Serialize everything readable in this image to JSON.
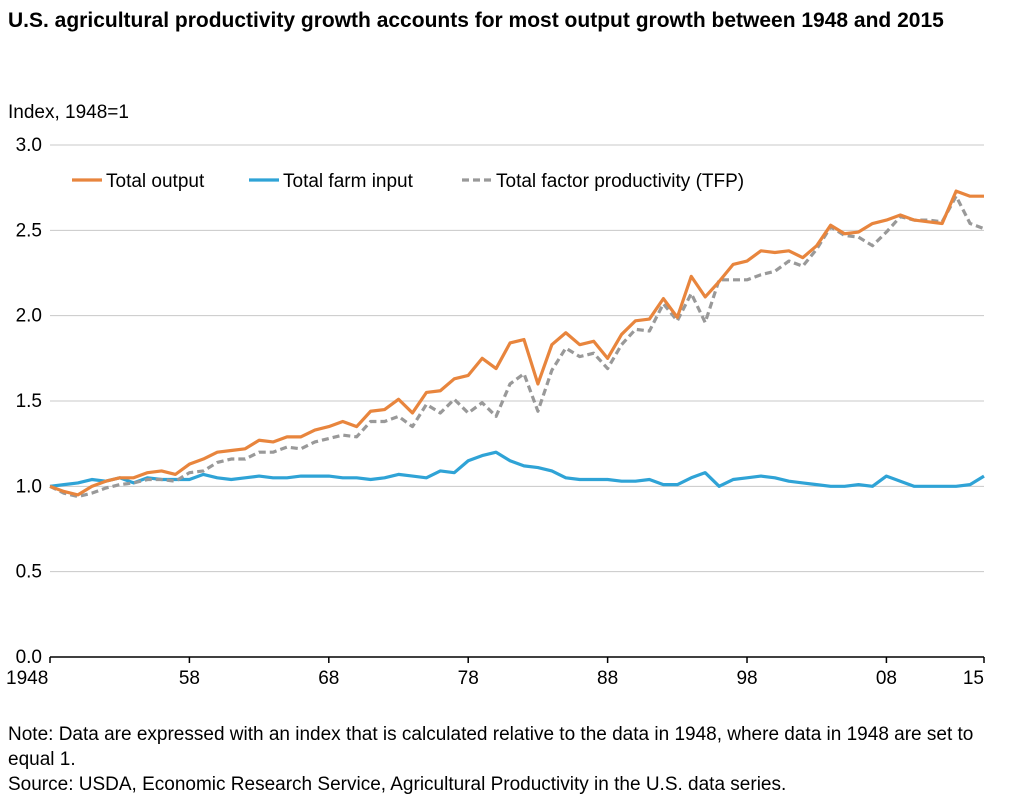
{
  "title": "U.S. agricultural productivity growth accounts for most output growth between 1948 and 2015",
  "note": "Note: Data are expressed with an index that is calculated relative to the data in 1948, where data in 1948 are set to equal 1.",
  "source": "Source: USDA, Economic Research Service, Agricultural Productivity in the U.S. data series.",
  "chart_data": {
    "type": "line",
    "ylabel": "Index, 1948=1",
    "xlabel": "",
    "ylim": [
      0,
      3
    ],
    "xlim": [
      1948,
      2015
    ],
    "yticks": [
      0,
      0.5,
      1,
      1.5,
      2,
      2.5,
      3
    ],
    "ytick_labels": [
      "0.0",
      "0.5",
      "1.0",
      "1.5",
      "2.0",
      "2.5",
      "3.0"
    ],
    "xticks": [
      1948,
      1958,
      1968,
      1978,
      1988,
      1998,
      2008,
      2015
    ],
    "xtick_labels": [
      "1948",
      "58",
      "68",
      "78",
      "88",
      "98",
      "08",
      "15"
    ],
    "grid": "horizontal",
    "legend_position": "top",
    "x": [
      1948,
      1949,
      1950,
      1951,
      1952,
      1953,
      1954,
      1955,
      1956,
      1957,
      1958,
      1959,
      1960,
      1961,
      1962,
      1963,
      1964,
      1965,
      1966,
      1967,
      1968,
      1969,
      1970,
      1971,
      1972,
      1973,
      1974,
      1975,
      1976,
      1977,
      1978,
      1979,
      1980,
      1981,
      1982,
      1983,
      1984,
      1985,
      1986,
      1987,
      1988,
      1989,
      1990,
      1991,
      1992,
      1993,
      1994,
      1995,
      1996,
      1997,
      1998,
      1999,
      2000,
      2001,
      2002,
      2003,
      2004,
      2005,
      2006,
      2007,
      2008,
      2009,
      2010,
      2011,
      2012,
      2013,
      2014,
      2015
    ],
    "series": [
      {
        "name": "Total output",
        "color": "#e8853d",
        "dash": "solid",
        "values": [
          1.0,
          0.97,
          0.95,
          1.0,
          1.03,
          1.05,
          1.05,
          1.08,
          1.09,
          1.07,
          1.13,
          1.16,
          1.2,
          1.21,
          1.22,
          1.27,
          1.26,
          1.29,
          1.29,
          1.33,
          1.35,
          1.38,
          1.35,
          1.44,
          1.45,
          1.51,
          1.43,
          1.55,
          1.56,
          1.63,
          1.65,
          1.75,
          1.69,
          1.84,
          1.86,
          1.6,
          1.83,
          1.9,
          1.83,
          1.85,
          1.75,
          1.89,
          1.97,
          1.98,
          2.1,
          1.99,
          2.23,
          2.11,
          2.2,
          2.3,
          2.32,
          2.38,
          2.37,
          2.38,
          2.34,
          2.41,
          2.53,
          2.48,
          2.49,
          2.54,
          2.56,
          2.59,
          2.56,
          2.55,
          2.54,
          2.73,
          2.7,
          2.7
        ]
      },
      {
        "name": "Total farm input",
        "color": "#2fa3d6",
        "dash": "solid",
        "values": [
          1.0,
          1.01,
          1.02,
          1.04,
          1.03,
          1.05,
          1.02,
          1.05,
          1.04,
          1.04,
          1.04,
          1.07,
          1.05,
          1.04,
          1.05,
          1.06,
          1.05,
          1.05,
          1.06,
          1.06,
          1.06,
          1.05,
          1.05,
          1.04,
          1.05,
          1.07,
          1.06,
          1.05,
          1.09,
          1.08,
          1.15,
          1.18,
          1.2,
          1.15,
          1.12,
          1.11,
          1.09,
          1.05,
          1.04,
          1.04,
          1.04,
          1.03,
          1.03,
          1.04,
          1.01,
          1.01,
          1.05,
          1.08,
          1.0,
          1.04,
          1.05,
          1.06,
          1.05,
          1.03,
          1.02,
          1.01,
          1.0,
          1.0,
          1.01,
          1.0,
          1.06,
          1.03,
          1.0,
          1.0,
          1.0,
          1.0,
          1.01,
          1.06
        ]
      },
      {
        "name": "Total factor productivity (TFP)",
        "color": "#999999",
        "dash": "dashed",
        "values": [
          1.0,
          0.96,
          0.94,
          0.96,
          0.99,
          1.01,
          1.02,
          1.04,
          1.04,
          1.03,
          1.08,
          1.09,
          1.14,
          1.16,
          1.16,
          1.2,
          1.2,
          1.23,
          1.22,
          1.26,
          1.28,
          1.3,
          1.29,
          1.38,
          1.38,
          1.41,
          1.35,
          1.48,
          1.43,
          1.51,
          1.43,
          1.49,
          1.41,
          1.6,
          1.66,
          1.44,
          1.68,
          1.81,
          1.76,
          1.78,
          1.69,
          1.83,
          1.92,
          1.91,
          2.07,
          1.97,
          2.13,
          1.96,
          2.21,
          2.21,
          2.21,
          2.24,
          2.26,
          2.32,
          2.29,
          2.39,
          2.52,
          2.47,
          2.46,
          2.41,
          2.49,
          2.58,
          2.56,
          2.56,
          2.55,
          2.7,
          2.54,
          2.51
        ]
      }
    ]
  }
}
